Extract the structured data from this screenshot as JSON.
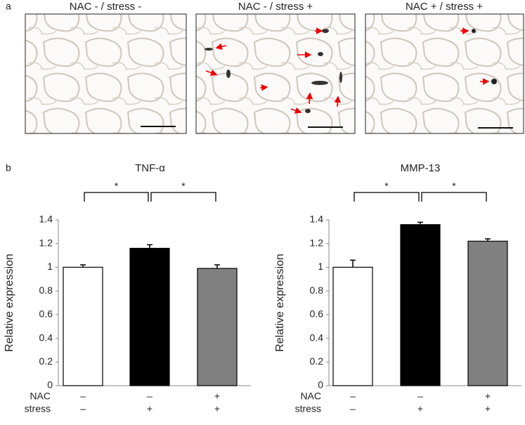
{
  "figure": {
    "panel_a_label": "a",
    "panel_b_label": "b",
    "image_titles": [
      "NAC - / stress -",
      "NAC - / stress +",
      "NAC + / stress +"
    ]
  },
  "chart_data": [
    {
      "type": "bar",
      "title": "TNF-α",
      "y_label": "Relative expression",
      "values": [
        1.0,
        1.16,
        0.99
      ],
      "errors": [
        0.02,
        0.03,
        0.03
      ],
      "colors": [
        "#ffffff",
        "#000000",
        "#808080"
      ],
      "condition_rows": [
        {
          "name": "NAC",
          "labels": [
            "–",
            "–",
            "+"
          ]
        },
        {
          "name": "stress",
          "labels": [
            "–",
            "+",
            "+"
          ]
        }
      ],
      "significance": [
        "*",
        "*"
      ],
      "ylim": [
        0,
        1.4
      ],
      "yticks": [
        0,
        0.2,
        0.4,
        0.6,
        0.8,
        1,
        1.2,
        1.4
      ]
    },
    {
      "type": "bar",
      "title": "MMP-13",
      "y_label": "Relative expression",
      "values": [
        1.0,
        1.36,
        1.22
      ],
      "errors": [
        0.06,
        0.02,
        0.02
      ],
      "colors": [
        "#ffffff",
        "#000000",
        "#808080"
      ],
      "condition_rows": [
        {
          "name": "NAC",
          "labels": [
            "–",
            "–",
            "+"
          ]
        },
        {
          "name": "stress",
          "labels": [
            "–",
            "+",
            "+"
          ]
        }
      ],
      "significance": [
        "*",
        "*"
      ],
      "ylim": [
        0,
        1.4
      ],
      "yticks": [
        0,
        0.2,
        0.4,
        0.6,
        0.8,
        1,
        1.2,
        1.4
      ]
    }
  ]
}
